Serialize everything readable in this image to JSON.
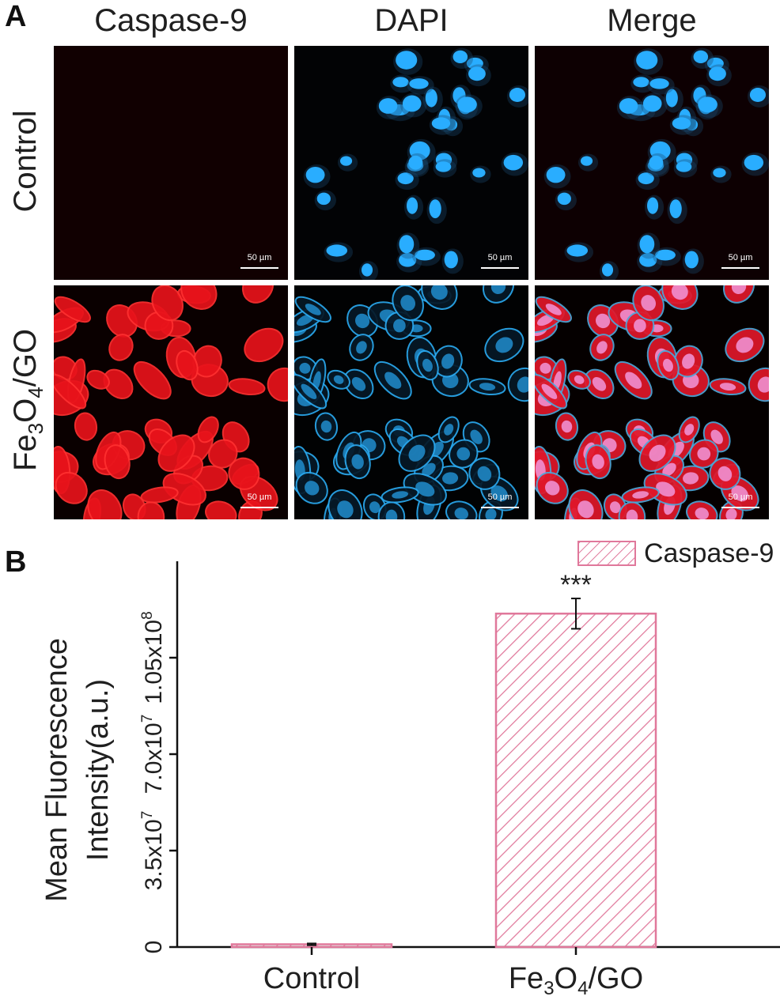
{
  "panel_a": {
    "letter": "A",
    "columns": [
      "Caspase-9",
      "DAPI",
      "Merge"
    ],
    "rows": [
      {
        "label_main": "Control",
        "label_parts": null
      },
      {
        "label_main": "",
        "label_parts": [
          "Fe",
          "3",
          "O",
          "4",
          "/GO"
        ]
      }
    ],
    "scale_bar_label": "50 µm"
  },
  "panel_b": {
    "letter": "B"
  },
  "colors": {
    "caspase_red": "#ff1a1a",
    "dapi_blue": "#2fb4ff",
    "bar_pink": "#e0789b",
    "background_dark": "#080000"
  },
  "chart_data": {
    "type": "bar",
    "categories": [
      "Control",
      "Fe3O4/GO"
    ],
    "category_labels": [
      {
        "parts": [
          "Control"
        ]
      },
      {
        "parts": [
          "Fe",
          "3",
          "O",
          "4",
          "/GO"
        ]
      }
    ],
    "series": [
      {
        "name": "Caspase-9",
        "values": [
          1000000,
          121000000
        ],
        "error": [
          300000,
          5500000
        ]
      }
    ],
    "significance": [
      "",
      "***"
    ],
    "ylabel_line1": "Mean Fluorescence",
    "ylabel_line2": "Intensity(a.u.)",
    "yticks": [
      {
        "value": 0,
        "label": "0"
      },
      {
        "value": 35000000,
        "label": "3.5x10",
        "exp": "7"
      },
      {
        "value": 70000000,
        "label": "7.0x10",
        "exp": "7"
      },
      {
        "value": 105000000,
        "label": "1.05x10",
        "exp": "8"
      }
    ],
    "ylim": [
      0,
      140000000
    ],
    "pattern": "diagonal-hatch",
    "legend_position": "top-right",
    "grid": false
  }
}
